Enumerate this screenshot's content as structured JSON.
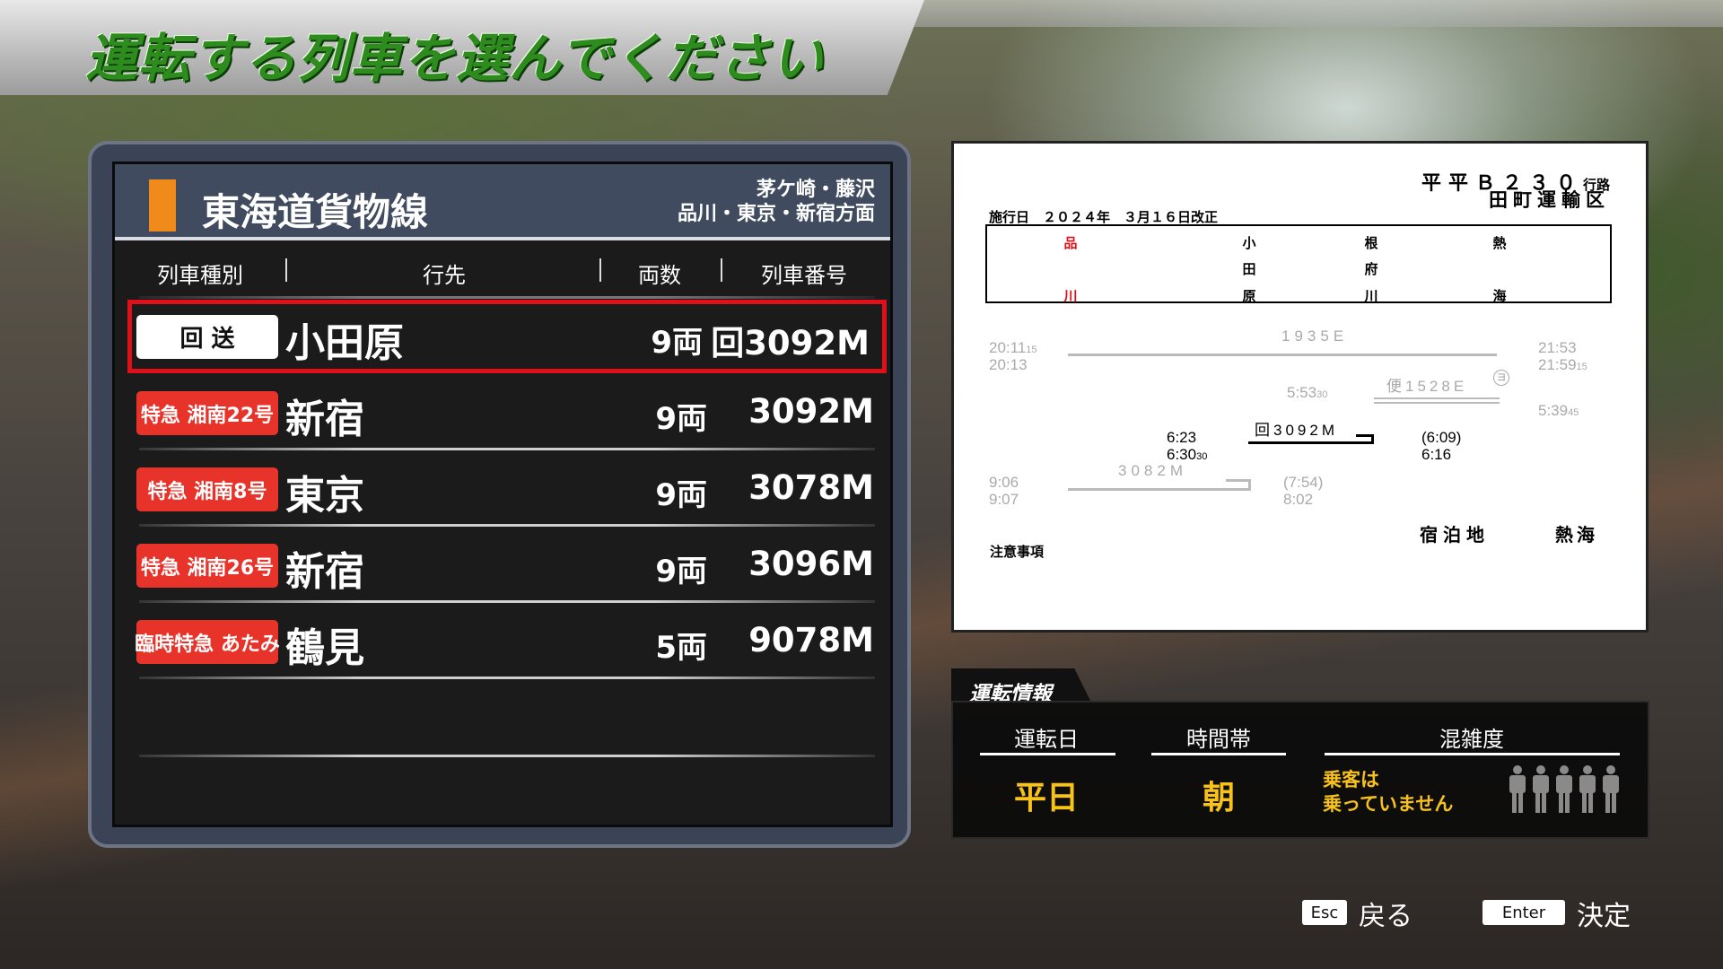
{
  "title": "運転する列車を選んでください",
  "line": {
    "name": "東海道貨物線",
    "direction_line1": "茅ケ崎・藤沢",
    "direction_line2": "品川・東京・新宿方面",
    "accent": "#f08a1a"
  },
  "columns": [
    "列車種別",
    "行先",
    "両数",
    "列車番号"
  ],
  "trains": [
    {
      "type": "回 送",
      "dest": "小田原",
      "cars": "9両",
      "number": "回3092M",
      "badge_bg": "#ffffff",
      "badge_fg": "#111111",
      "selected": true
    },
    {
      "type": "特急 湘南22号",
      "dest": "新宿",
      "cars": "9両",
      "number": "3092M",
      "badge_bg": "#e8332a",
      "badge_fg": "#ffffff"
    },
    {
      "type": "特急 湘南8号",
      "dest": "東京",
      "cars": "9両",
      "number": "3078M",
      "badge_bg": "#e8332a",
      "badge_fg": "#ffffff"
    },
    {
      "type": "特急 湘南26号",
      "dest": "新宿",
      "cars": "9両",
      "number": "3096M",
      "badge_bg": "#e8332a",
      "badge_fg": "#ffffff"
    },
    {
      "type": "臨時特急 あたみ",
      "dest": "鶴見",
      "cars": "5両",
      "number": "9078M",
      "badge_bg": "#e8332a",
      "badge_fg": "#ffffff"
    }
  ],
  "timetable": {
    "route_id": "平平Ｂ２３０",
    "route_suffix": "行路",
    "depot": "田町運輸区",
    "effective": "施行日　２０２４年　３月１６日改正",
    "stations": [
      [
        "品",
        "",
        "川"
      ],
      [
        "小",
        "田",
        "原"
      ],
      [
        "根",
        "府",
        "川"
      ],
      [
        "熱",
        "",
        "海"
      ]
    ],
    "t1": {
      "train": "1935E",
      "dep1": "20:11",
      "dep1s": "15",
      "dep2": "20:13",
      "arr1": "21:53",
      "arr2": "21:59",
      "arr2s": "15"
    },
    "t2": {
      "train": "便1528E",
      "mark": "ヨ",
      "time1": "5:53",
      "time1s": "30",
      "time2": "5:39",
      "time2s": "45"
    },
    "t3": {
      "train": "回3092M",
      "l1": "6:23",
      "l2": "6:30",
      "l2s": "30",
      "r1": "(6:09)",
      "r2": "6:16"
    },
    "t4": {
      "train": "3082M",
      "l1": "9:06",
      "l2": "9:07",
      "r1": "(7:54)",
      "r2": "8:02"
    },
    "stay_label": "宿泊地",
    "stay_value": "熱海",
    "notes_label": "注意事項"
  },
  "info": {
    "tab": "運転情報",
    "day_label": "運転日",
    "day_value": "平日",
    "time_label": "時間帯",
    "time_value": "朝",
    "crowd_label": "混雑度",
    "crowd_text1": "乗客は",
    "crowd_text2": "乗っていません",
    "crowd_level": 0
  },
  "footer": {
    "back_key": "Esc",
    "back_label": "戻る",
    "ok_key": "Enter",
    "ok_label": "決定"
  }
}
